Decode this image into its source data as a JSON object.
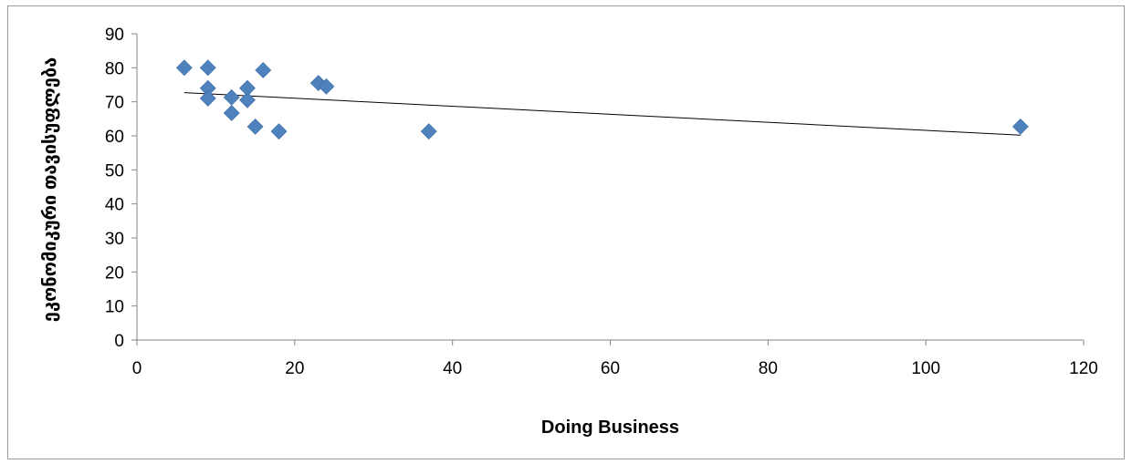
{
  "chart_data": {
    "type": "scatter",
    "xlabel": "Doing Business",
    "ylabel": "ეკონომიკური თავისუფლება",
    "xlim": [
      0,
      120
    ],
    "ylim": [
      0,
      90
    ],
    "x_ticks": [
      0,
      20,
      40,
      60,
      80,
      100,
      120
    ],
    "y_ticks": [
      0,
      10,
      20,
      30,
      40,
      50,
      60,
      70,
      80,
      90
    ],
    "grid": false,
    "marker": "diamond",
    "colors": {
      "marker": "#4f81bd",
      "trendline": "#000000",
      "axis": "#868686"
    },
    "series": [
      {
        "points": [
          {
            "x": 6,
            "y": 80
          },
          {
            "x": 9,
            "y": 80
          },
          {
            "x": 9,
            "y": 74
          },
          {
            "x": 9,
            "y": 71
          },
          {
            "x": 12,
            "y": 71.3
          },
          {
            "x": 12,
            "y": 66.7
          },
          {
            "x": 14,
            "y": 74
          },
          {
            "x": 14,
            "y": 70.5
          },
          {
            "x": 15,
            "y": 62.7
          },
          {
            "x": 16,
            "y": 79.3
          },
          {
            "x": 18,
            "y": 61.3
          },
          {
            "x": 23,
            "y": 75.5
          },
          {
            "x": 24,
            "y": 74.5
          },
          {
            "x": 37,
            "y": 61.3
          },
          {
            "x": 112,
            "y": 62.7
          }
        ]
      }
    ],
    "trendline": {
      "type": "linear",
      "x": [
        6,
        112
      ],
      "y": [
        72.7,
        60.2
      ]
    }
  }
}
